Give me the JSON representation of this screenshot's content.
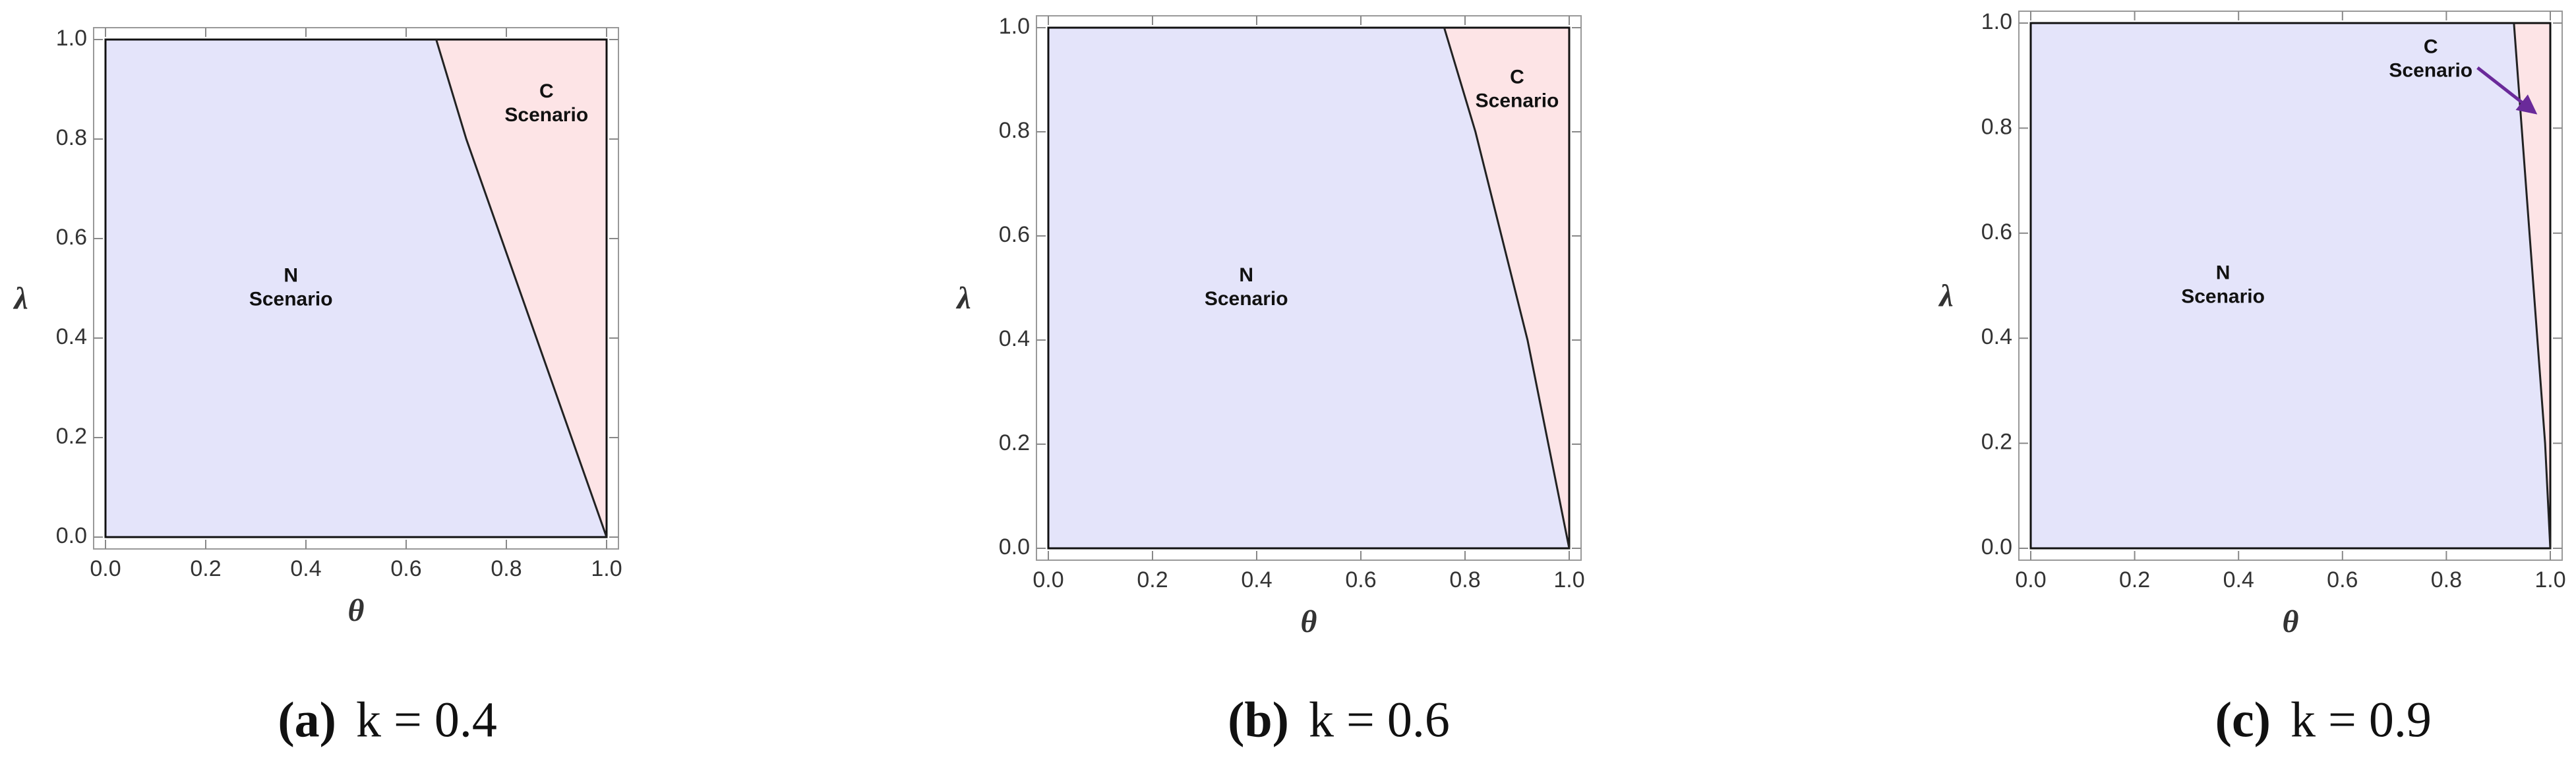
{
  "chart_data": [
    {
      "type": "region",
      "xlabel": "θ",
      "ylabel": "λ",
      "caption_label": "(a)",
      "caption": "k = 0.4",
      "xlim": [
        0,
        1
      ],
      "ylim": [
        0,
        1
      ],
      "xticks": [
        {
          "value": 0,
          "label": "0.0"
        },
        0.2,
        0.4,
        0.6,
        0.8,
        {
          "value": 1,
          "label": "1.0"
        }
      ],
      "yticks": [
        {
          "value": 0,
          "label": "0.0"
        },
        0.2,
        0.4,
        0.6,
        0.8,
        {
          "value": 1,
          "label": "1.0"
        }
      ],
      "boundary": {
        "x": [
          0.66,
          0.72,
          0.79,
          0.86,
          0.93,
          1
        ],
        "y": [
          1,
          0.8,
          0.6,
          0.4,
          0.2,
          0
        ],
        "color": "#222222"
      },
      "regions": [
        {
          "name": [
            "N",
            "Scenario"
          ],
          "color": "#e4e4fa"
        },
        {
          "name": [
            "C",
            "Scenario"
          ],
          "color": "#fde4e6"
        }
      ]
    },
    {
      "type": "region",
      "xlabel": "θ",
      "ylabel": "λ",
      "caption_label": "(b)",
      "caption": "k = 0.6",
      "xlim": [
        0,
        1
      ],
      "ylim": [
        0,
        1
      ],
      "xticks": [
        {
          "value": 0,
          "label": "0.0"
        },
        0.2,
        0.4,
        0.6,
        0.8,
        {
          "value": 1,
          "label": "1.0"
        }
      ],
      "yticks": [
        {
          "value": 0,
          "label": "0.0"
        },
        0.2,
        0.4,
        0.6,
        0.8,
        {
          "value": 1,
          "label": "1.0"
        }
      ],
      "boundary": {
        "x": [
          0.76,
          0.82,
          0.87,
          0.92,
          0.96,
          1
        ],
        "y": [
          1,
          0.8,
          0.6,
          0.4,
          0.2,
          0
        ],
        "color": "#222222"
      },
      "regions": [
        {
          "name": [
            "N",
            "Scenario"
          ],
          "color": "#e4e4fa"
        },
        {
          "name": [
            "C",
            "Scenario"
          ],
          "color": "#fde4e6"
        }
      ]
    },
    {
      "type": "region",
      "xlabel": "θ",
      "ylabel": "λ",
      "caption_label": "(c)",
      "caption": "k = 0.9",
      "xlim": [
        0,
        1
      ],
      "ylim": [
        0,
        1
      ],
      "xticks": [
        {
          "value": 0,
          "label": "0.0"
        },
        0.2,
        0.4,
        0.6,
        0.8,
        {
          "value": 1,
          "label": "1.0"
        }
      ],
      "yticks": [
        {
          "value": 0,
          "label": "0.0"
        },
        0.2,
        0.4,
        0.6,
        0.8,
        {
          "value": 1,
          "label": "1.0"
        }
      ],
      "boundary": {
        "x": [
          0.93,
          0.945,
          0.96,
          0.975,
          0.99,
          1
        ],
        "y": [
          1,
          0.8,
          0.6,
          0.4,
          0.2,
          0
        ],
        "color": "#222222"
      },
      "regions": [
        {
          "name": [
            "N",
            "Scenario"
          ],
          "color": "#e4e4fa"
        },
        {
          "name": [
            "C",
            "Scenario"
          ],
          "color": "#fde4e6"
        }
      ],
      "arrow_color": "#6a2a9a"
    }
  ]
}
